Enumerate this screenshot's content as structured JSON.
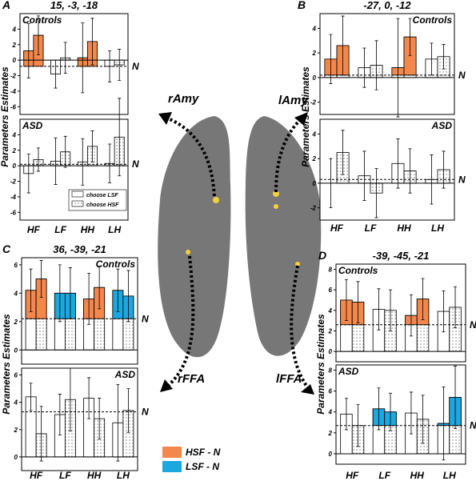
{
  "chart_data": [
    {
      "type": "bar",
      "panel": "A",
      "title": "15, -3, -18",
      "group": "Controls",
      "corner": "left",
      "ylabel": "Parameters Estimates",
      "categories": [
        null,
        null,
        null,
        null
      ],
      "ylim": [
        -7,
        6
      ],
      "yticks": [
        4,
        2,
        0,
        -2,
        -4,
        -6
      ],
      "n_level": -0.8,
      "n_label": "N",
      "series": [
        {
          "color": "#ffffff",
          "values": [
            1.2,
            -1.8,
            0.3,
            -0.8
          ],
          "errors": [
            3.5,
            1.8,
            4.5,
            2
          ],
          "highlight": [
            "#f4874b",
            null,
            "#f4874b",
            null
          ]
        },
        {
          "color": "dots",
          "values": [
            3.2,
            0.3,
            2.4,
            -0.6
          ],
          "errors": [
            2.5,
            2,
            3,
            2
          ],
          "highlight": [
            "#f4874b",
            null,
            "#f4874b",
            null
          ]
        }
      ]
    },
    {
      "type": "bar",
      "group": "ASD",
      "corner": "left",
      "categories": [
        "HF",
        "LF",
        "HH",
        "LH"
      ],
      "ylim": [
        -7,
        6
      ],
      "yticks": [
        4,
        2,
        0,
        -2,
        -4,
        -6
      ],
      "n_level": 0.2,
      "n_label": "N",
      "legend": true,
      "series": [
        {
          "name": "choose LSF",
          "color": "#ffffff",
          "values": [
            -1.0,
            0.6,
            0.5,
            0.3
          ],
          "errors": [
            2.5,
            3,
            3,
            2.5
          ],
          "highlight": [
            null,
            null,
            null,
            null
          ]
        },
        {
          "name": "choose HSF",
          "color": "dots",
          "values": [
            0.8,
            1.8,
            2.5,
            3.7
          ],
          "errors": [
            1.5,
            2,
            2,
            5
          ],
          "highlight": [
            null,
            null,
            null,
            null
          ]
        }
      ]
    },
    {
      "type": "bar",
      "panel": "B",
      "title": "-27, 0, -12",
      "group": "Controls",
      "corner": "right",
      "ylabel": "Parameters Estimates",
      "categories": [
        null,
        null,
        null,
        null
      ],
      "ylim": [
        -3,
        5.2
      ],
      "yticks": [
        4,
        2,
        0,
        -2
      ],
      "n_level": 0.2,
      "n_label": "N",
      "series": [
        {
          "color": "#ffffff",
          "values": [
            1.5,
            0.8,
            0.8,
            1.5
          ],
          "errors": [
            2,
            1.6,
            4,
            1.3
          ],
          "highlight": [
            "#f4874b",
            null,
            "#f4874b",
            null
          ]
        },
        {
          "color": "dots",
          "values": [
            2.6,
            1.0,
            3.3,
            1.7
          ],
          "errors": [
            2.4,
            2,
            1.5,
            1
          ],
          "highlight": [
            "#f4874b",
            null,
            "#f4874b",
            null
          ]
        }
      ]
    },
    {
      "type": "bar",
      "group": "ASD",
      "corner": "right",
      "categories": [
        "HF",
        "LF",
        "HH",
        "LH"
      ],
      "ylim": [
        -3,
        5.2
      ],
      "yticks": [
        4,
        2,
        0,
        -2
      ],
      "n_level": 0.3,
      "n_label": "N",
      "series": [
        {
          "color": "#ffffff",
          "values": [
            0,
            0.6,
            1.6,
            0.3
          ],
          "errors": [
            2,
            2,
            2,
            2
          ],
          "highlight": [
            null,
            null,
            null,
            null
          ]
        },
        {
          "color": "dots",
          "values": [
            2.5,
            -0.8,
            1.0,
            1.1
          ],
          "errors": [
            1.8,
            2,
            1.8,
            1.5
          ],
          "highlight": [
            null,
            null,
            null,
            null
          ]
        }
      ]
    },
    {
      "type": "bar",
      "panel": "C",
      "title": "36, -39, -21",
      "group": "Controls",
      "corner": "right",
      "ylabel": "Parameters Estimates",
      "categories": [
        null,
        null,
        null,
        null
      ],
      "ylim": [
        -1,
        6.5
      ],
      "yticks": [
        6,
        4,
        2,
        0
      ],
      "n_level": 2.2,
      "n_label": "N",
      "series": [
        {
          "color": "#ffffff",
          "values": [
            4.2,
            4.0,
            3.6,
            4.2
          ],
          "errors": [
            1.5,
            2,
            1.8,
            1.5
          ],
          "highlight": [
            "#f4874b",
            "#1ba8e0",
            "#f4874b",
            "#1ba8e0"
          ]
        },
        {
          "color": "dots",
          "values": [
            5.0,
            4.0,
            4.4,
            3.8
          ],
          "errors": [
            1.3,
            1.8,
            1.5,
            1.8
          ],
          "highlight": [
            "#f4874b",
            "#1ba8e0",
            "#f4874b",
            "#1ba8e0"
          ]
        }
      ]
    },
    {
      "type": "bar",
      "group": "ASD",
      "corner": "right",
      "categories": [
        "HF",
        "LF",
        "HH",
        "LH"
      ],
      "ylim": [
        -1,
        6.5
      ],
      "yticks": [
        6,
        4,
        2,
        0
      ],
      "n_level": 3.3,
      "n_label": "N",
      "series": [
        {
          "color": "#ffffff",
          "values": [
            4.4,
            3.1,
            4.3,
            2.5
          ],
          "errors": [
            1,
            1.5,
            1.5,
            2.8
          ],
          "highlight": [
            null,
            null,
            null,
            null
          ]
        },
        {
          "color": "dots",
          "values": [
            1.7,
            4.2,
            2.8,
            3.4
          ],
          "errors": [
            2,
            2.3,
            1.5,
            1.6
          ],
          "highlight": [
            null,
            null,
            null,
            null
          ]
        }
      ]
    },
    {
      "type": "bar",
      "panel": "D",
      "title": "-39, -45, -21",
      "group": "Controls",
      "corner": "left",
      "ylabel": "Parameters Estimates",
      "categories": [
        null,
        null,
        null,
        null
      ],
      "ylim": [
        -1,
        8.5
      ],
      "yticks": [
        8,
        6,
        4,
        2,
        0
      ],
      "n_level": 2.6,
      "n_label": "N",
      "series": [
        {
          "color": "#ffffff",
          "values": [
            5.0,
            4.1,
            3.5,
            3.9
          ],
          "errors": [
            2,
            2,
            2,
            2
          ],
          "highlight": [
            "#f4874b",
            null,
            "#f4874b",
            null
          ]
        },
        {
          "color": "dots",
          "values": [
            4.8,
            4.0,
            5.1,
            4.3
          ],
          "errors": [
            2,
            2,
            2,
            2
          ],
          "highlight": [
            "#f4874b",
            null,
            "#f4874b",
            null
          ]
        }
      ]
    },
    {
      "type": "bar",
      "group": "ASD",
      "corner": "left",
      "categories": [
        "HF",
        "LF",
        "HH",
        "LH"
      ],
      "ylim": [
        -1,
        8.5
      ],
      "yticks": [
        8,
        6,
        4,
        2,
        0
      ],
      "n_level": 2.7,
      "n_label": "N",
      "series": [
        {
          "color": "#ffffff",
          "values": [
            3.8,
            4.3,
            3.9,
            2.9
          ],
          "errors": [
            1.5,
            2,
            2,
            3.5
          ],
          "highlight": [
            null,
            "#1ba8e0",
            null,
            "#1ba8e0"
          ]
        },
        {
          "color": "dots",
          "values": [
            2.7,
            4.0,
            3.3,
            5.4
          ],
          "errors": [
            2,
            1.8,
            2.3,
            3
          ],
          "highlight": [
            null,
            "#1ba8e0",
            null,
            "#1ba8e0"
          ]
        }
      ]
    }
  ],
  "contrast_legend": [
    {
      "name": "HSF - N",
      "color": "#f4874b"
    },
    {
      "name": "LSF - N",
      "color": "#1ba8e0"
    }
  ],
  "brain_labels": [
    "rAmy",
    "lAmy",
    "rFFA",
    "lFFA"
  ]
}
